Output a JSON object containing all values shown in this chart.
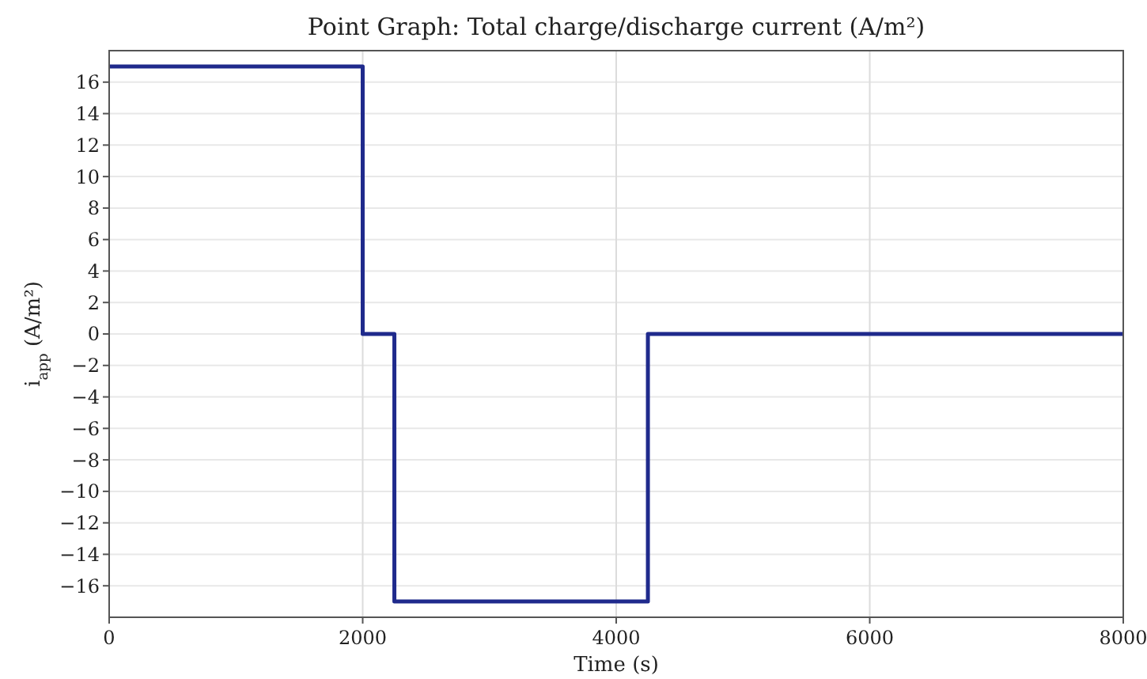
{
  "chart_data": {
    "type": "step",
    "title": "Point Graph: Total charge/discharge current (A/m²)",
    "xlabel": "Time (s)",
    "ylabel": "i$_{app}$ (A/m²)",
    "x": [
      0,
      2000,
      2250,
      4250,
      8000
    ],
    "series": [
      {
        "color": "#1f2a8c",
        "values": [
          17,
          0,
          -17,
          0,
          0
        ]
      }
    ],
    "xlim": [
      0,
      8000
    ],
    "xticks": [
      0,
      2000,
      4000,
      6000,
      8000
    ],
    "ylim": [
      -18,
      18
    ],
    "yticks": [
      -16,
      -14,
      -12,
      -10,
      -8,
      -6,
      -4,
      -2,
      0,
      2,
      4,
      6,
      8,
      10,
      12,
      14,
      16
    ],
    "grid": true
  }
}
